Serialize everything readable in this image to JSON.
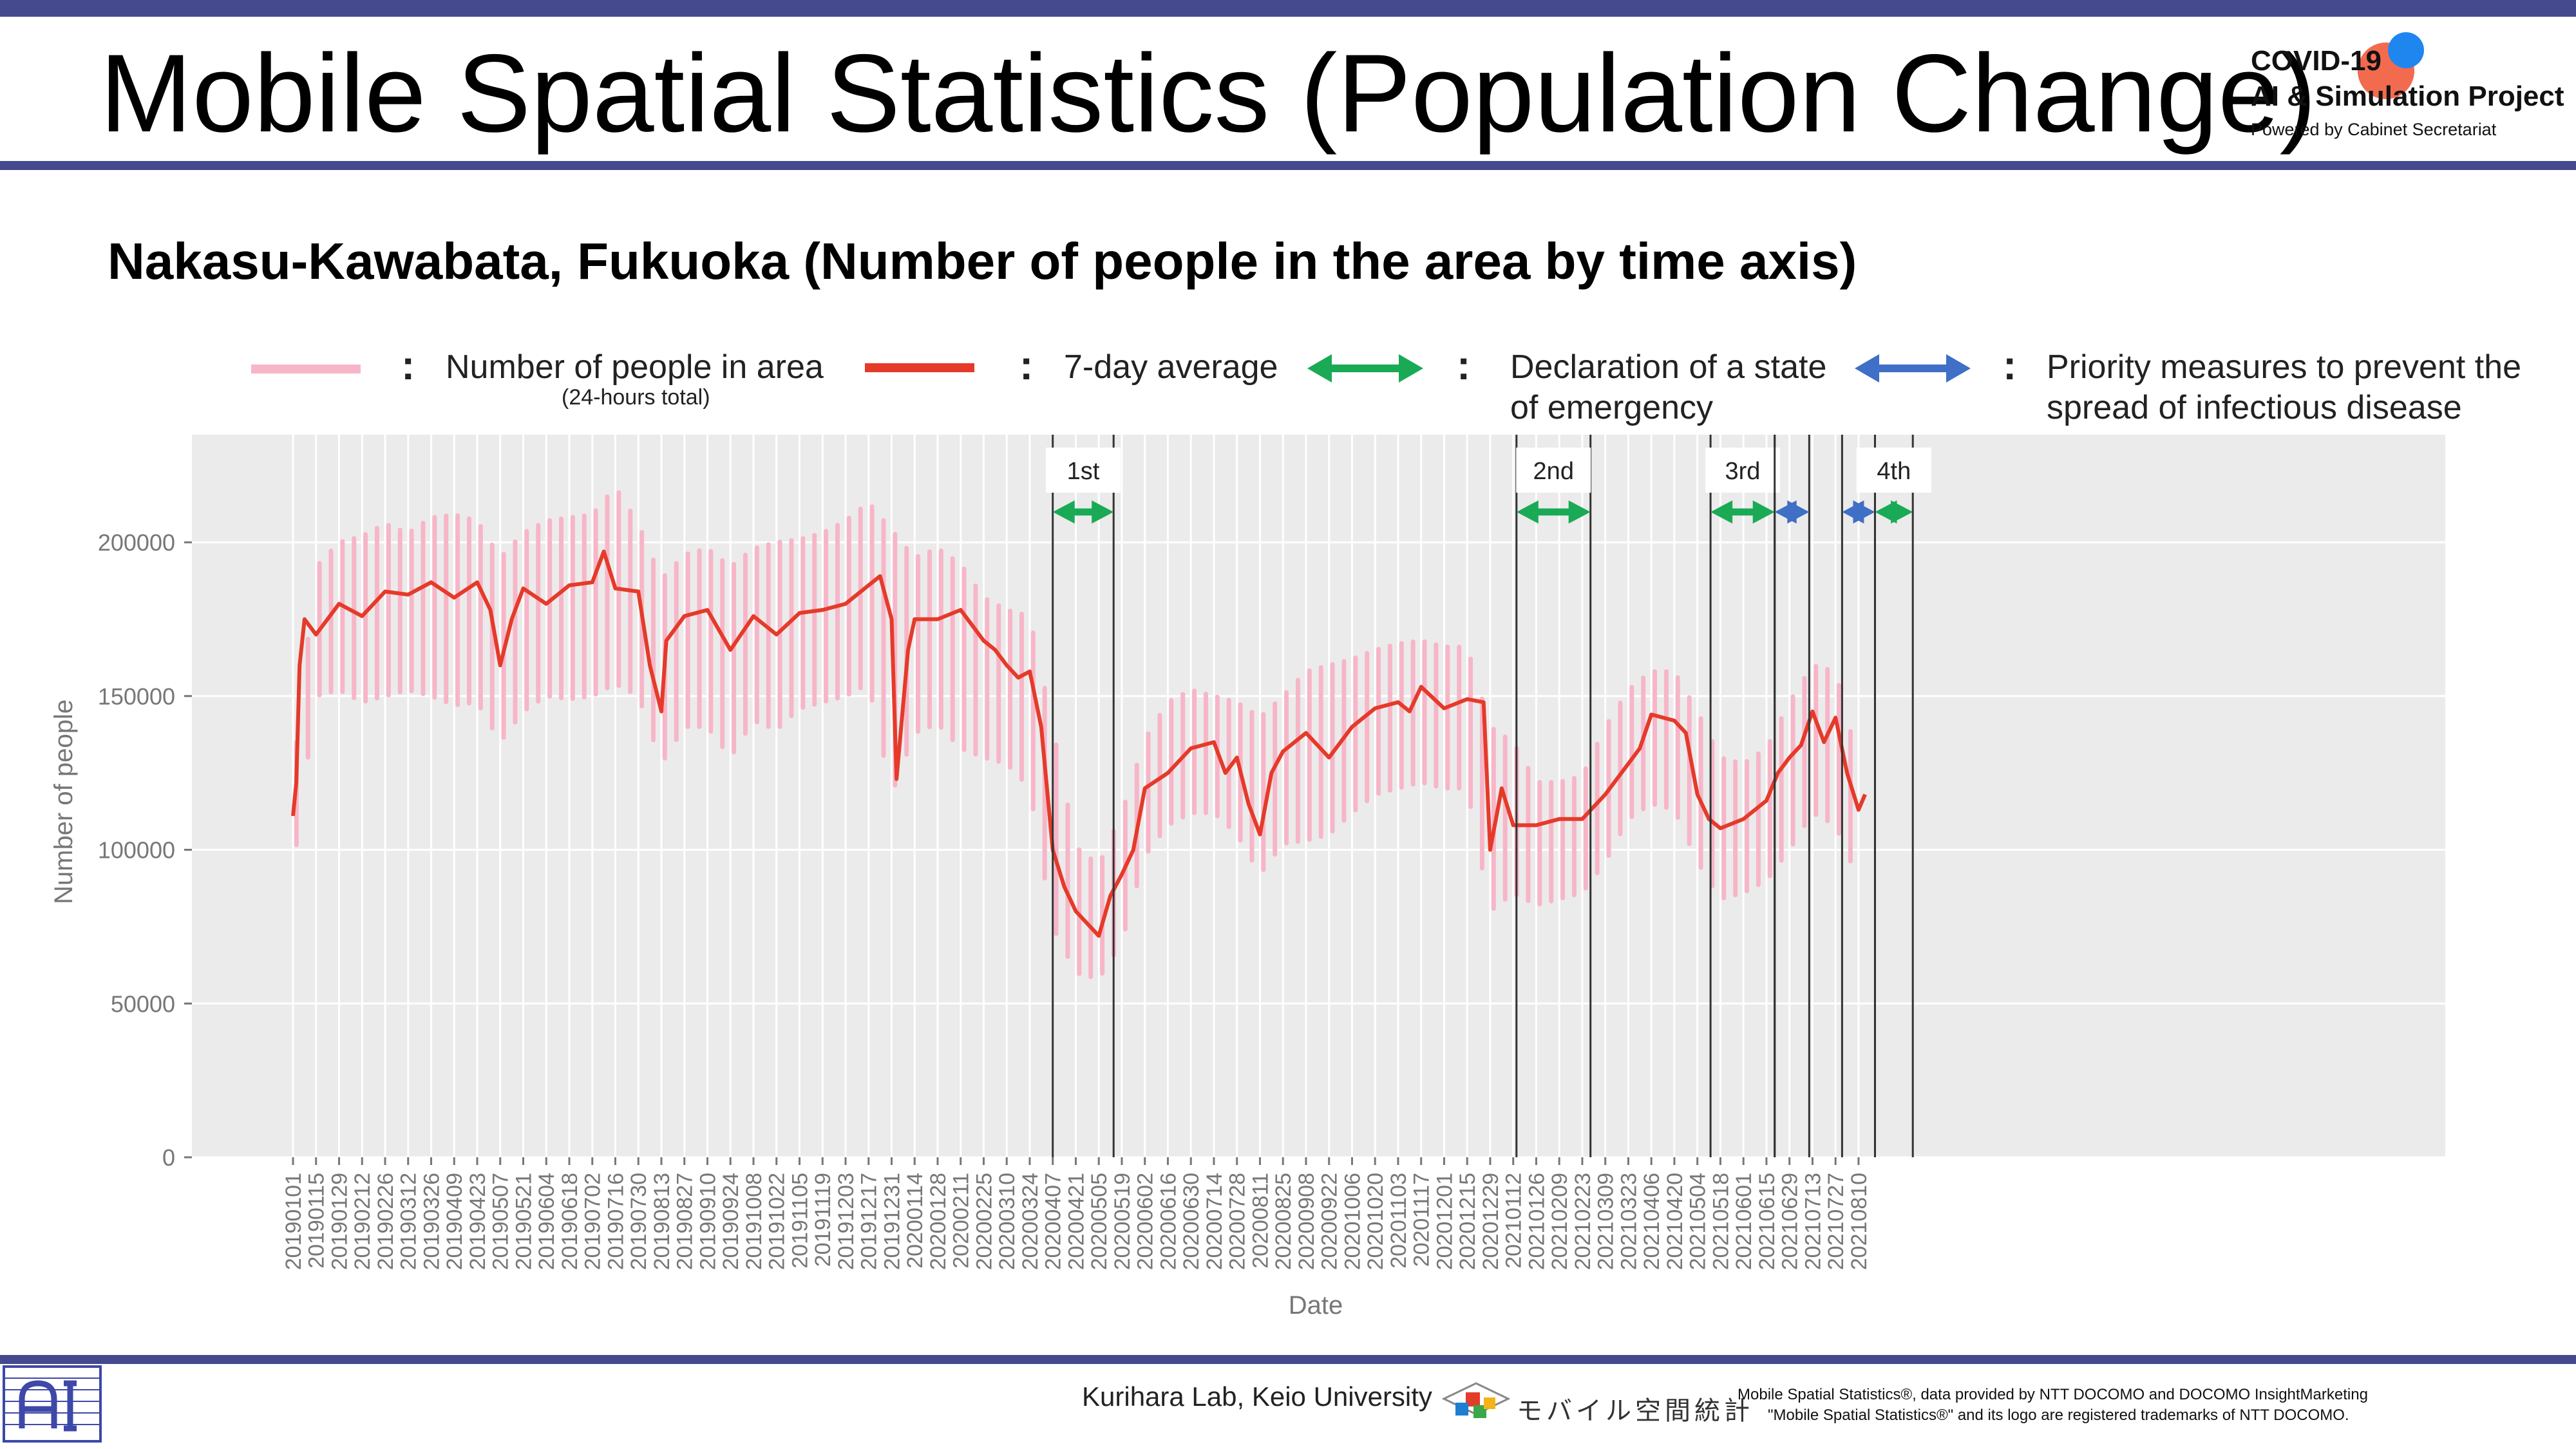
{
  "header": {
    "title": "Mobile Spatial Statistics (Population Change)",
    "logo_line1": "COVID-19",
    "logo_line2": "AI & Simulation Project",
    "logo_line3": "Powered by Cabinet Secretariat"
  },
  "subtitle": "Nakasu-Kawabata, Fukuoka (Number of people in the area by time axis)",
  "legend": {
    "colon": ":",
    "daily_label": "Number of people in area",
    "daily_sub": "(24-hours total)",
    "avg_label": "7-day average",
    "emergency_label_1": "Declaration of a state",
    "emergency_label_2": "of emergency",
    "priority_label_1": "Priority measures to prevent the",
    "priority_label_2": "spread of infectious disease"
  },
  "colors": {
    "band": "#454a8e",
    "daily": "#f7b6c8",
    "avg": "#e53a2a",
    "emergency": "#1aaa55",
    "priority": "#3f6fc6",
    "plot_bg": "#ebebeb"
  },
  "chart_data": {
    "type": "line",
    "xlabel": "Date",
    "ylabel": "Number of people",
    "ylim": [
      0,
      235000
    ],
    "yticks": [
      0,
      50000,
      100000,
      150000,
      200000
    ],
    "ytick_labels": [
      "0",
      "50000",
      "100000",
      "150000",
      "200000"
    ],
    "grid": true,
    "legend_position": "top",
    "x_tick_labels": [
      "20190101",
      "20190115",
      "20190129",
      "20190212",
      "20190226",
      "20190312",
      "20190326",
      "20190409",
      "20190423",
      "20190507",
      "20190521",
      "20190604",
      "20190618",
      "20190702",
      "20190716",
      "20190730",
      "20190813",
      "20190827",
      "20190910",
      "20190924",
      "20191008",
      "20191022",
      "20191105",
      "20191119",
      "20191203",
      "20191217",
      "20191231",
      "20200114",
      "20200128",
      "20200211",
      "20200225",
      "20200310",
      "20200324",
      "20200407",
      "20200421",
      "20200505",
      "20200519",
      "20200602",
      "20200616",
      "20200630",
      "20200714",
      "20200728",
      "20200811",
      "20200825",
      "20200908",
      "20200922",
      "20201006",
      "20201020",
      "20201103",
      "20201117",
      "20201201",
      "20201215",
      "20201229",
      "20210112",
      "20210126",
      "20210209",
      "20210223",
      "20210309",
      "20210323",
      "20210406",
      "20210420",
      "20210504",
      "20210518",
      "20210601",
      "20210615",
      "20210629",
      "20210713",
      "20210727",
      "20210810"
    ],
    "series": [
      {
        "name": "7-day average",
        "x": [
          "2019-01-01",
          "2019-01-03",
          "2019-01-05",
          "2019-01-08",
          "2019-01-15",
          "2019-01-29",
          "2019-02-12",
          "2019-02-26",
          "2019-03-12",
          "2019-03-26",
          "2019-04-09",
          "2019-04-23",
          "2019-05-01",
          "2019-05-07",
          "2019-05-14",
          "2019-05-21",
          "2019-06-04",
          "2019-06-18",
          "2019-07-02",
          "2019-07-09",
          "2019-07-16",
          "2019-07-30",
          "2019-08-06",
          "2019-08-13",
          "2019-08-16",
          "2019-08-27",
          "2019-09-10",
          "2019-09-24",
          "2019-10-08",
          "2019-10-22",
          "2019-11-05",
          "2019-11-19",
          "2019-12-03",
          "2019-12-17",
          "2019-12-24",
          "2019-12-31",
          "2020-01-03",
          "2020-01-10",
          "2020-01-14",
          "2020-01-28",
          "2020-02-11",
          "2020-02-25",
          "2020-03-03",
          "2020-03-10",
          "2020-03-17",
          "2020-03-24",
          "2020-03-31",
          "2020-04-07",
          "2020-04-14",
          "2020-04-21",
          "2020-04-28",
          "2020-05-05",
          "2020-05-12",
          "2020-05-19",
          "2020-05-26",
          "2020-06-02",
          "2020-06-16",
          "2020-06-30",
          "2020-07-14",
          "2020-07-21",
          "2020-07-28",
          "2020-08-04",
          "2020-08-11",
          "2020-08-18",
          "2020-08-25",
          "2020-09-08",
          "2020-09-22",
          "2020-10-06",
          "2020-10-20",
          "2020-11-03",
          "2020-11-10",
          "2020-11-17",
          "2020-12-01",
          "2020-12-15",
          "2020-12-25",
          "2020-12-29",
          "2021-01-05",
          "2021-01-12",
          "2021-01-26",
          "2021-02-09",
          "2021-02-23",
          "2021-03-09",
          "2021-03-23",
          "2021-03-30",
          "2021-04-06",
          "2021-04-20",
          "2021-04-27",
          "2021-05-04",
          "2021-05-11",
          "2021-05-18",
          "2021-06-01",
          "2021-06-15",
          "2021-06-22",
          "2021-06-29",
          "2021-07-06",
          "2021-07-13",
          "2021-07-20",
          "2021-07-27",
          "2021-08-03",
          "2021-08-10",
          "2021-08-14"
        ],
        "values": [
          111000,
          122000,
          160000,
          175000,
          170000,
          180000,
          176000,
          184000,
          183000,
          187000,
          182000,
          187000,
          178000,
          160000,
          175000,
          185000,
          180000,
          186000,
          187000,
          197000,
          185000,
          184000,
          160000,
          145000,
          168000,
          176000,
          178000,
          165000,
          176000,
          170000,
          177000,
          178000,
          180000,
          186000,
          189000,
          175000,
          123000,
          165000,
          175000,
          175000,
          178000,
          168000,
          165000,
          160000,
          156000,
          158000,
          140000,
          100000,
          88000,
          80000,
          76000,
          72000,
          85000,
          92000,
          100000,
          120000,
          125000,
          133000,
          135000,
          125000,
          130000,
          115000,
          105000,
          125000,
          132000,
          138000,
          130000,
          140000,
          146000,
          148000,
          145000,
          153000,
          146000,
          149000,
          148000,
          100000,
          120000,
          108000,
          108000,
          110000,
          110000,
          118000,
          128000,
          133000,
          144000,
          142000,
          138000,
          118000,
          110000,
          107000,
          110000,
          116000,
          125000,
          130000,
          134000,
          145000,
          135000,
          143000,
          125000,
          113000,
          118000
        ]
      },
      {
        "name": "Number of people in area",
        "x": [
          "2019-01-01",
          "2019-01-15",
          "2019-01-29",
          "2019-02-12",
          "2019-02-26",
          "2019-03-12",
          "2019-03-26",
          "2019-04-09",
          "2019-04-23",
          "2019-05-07",
          "2019-05-21",
          "2019-06-04",
          "2019-06-18",
          "2019-07-02",
          "2019-07-16",
          "2019-07-30",
          "2019-08-13",
          "2019-08-27",
          "2019-09-10",
          "2019-09-24",
          "2019-10-08",
          "2019-10-22",
          "2019-11-05",
          "2019-11-19",
          "2019-12-03",
          "2019-12-17",
          "2019-12-31",
          "2020-01-14",
          "2020-01-28",
          "2020-02-11",
          "2020-02-25",
          "2020-03-10",
          "2020-03-24",
          "2020-04-07",
          "2020-04-21",
          "2020-05-05",
          "2020-05-19",
          "2020-06-02",
          "2020-06-16",
          "2020-06-30",
          "2020-07-14",
          "2020-07-28",
          "2020-08-11",
          "2020-08-25",
          "2020-09-08",
          "2020-09-22",
          "2020-10-06",
          "2020-10-20",
          "2020-11-03",
          "2020-11-17",
          "2020-12-01",
          "2020-12-15",
          "2020-12-29",
          "2021-01-12",
          "2021-01-26",
          "2021-02-09",
          "2021-02-23",
          "2021-03-09",
          "2021-03-23",
          "2021-04-06",
          "2021-04-20",
          "2021-05-04",
          "2021-05-18",
          "2021-06-01",
          "2021-06-15",
          "2021-06-29",
          "2021-07-13",
          "2021-07-27",
          "2021-08-10"
        ],
        "high": [
          125000,
          192000,
          200000,
          202000,
          206000,
          203000,
          208000,
          209000,
          207000,
          195000,
          203000,
          207000,
          208000,
          209000,
          218000,
          206000,
          188000,
          196000,
          198000,
          192000,
          198000,
          200000,
          201000,
          203000,
          207000,
          213000,
          204000,
          195000,
          198000,
          193000,
          182000,
          178000,
          176000,
          140000,
          101000,
          95000,
          112000,
          136000,
          148000,
          152000,
          150000,
          148000,
          143000,
          150000,
          158000,
          160000,
          162000,
          165000,
          167000,
          168000,
          166000,
          166000,
          140000,
          135000,
          122000,
          122000,
          124000,
          140000,
          152000,
          158000,
          158000,
          145000,
          130000,
          128000,
          133000,
          148000,
          160000,
          158000,
          128000
        ],
        "low": [
          93000,
          150000,
          152000,
          148000,
          150000,
          152000,
          150000,
          147000,
          148000,
          135000,
          145000,
          150000,
          149000,
          150000,
          154000,
          150000,
          128000,
          140000,
          140000,
          130000,
          142000,
          139000,
          146000,
          148000,
          150000,
          154000,
          118000,
          138000,
          141000,
          133000,
          130000,
          128000,
          120000,
          75000,
          60000,
          58000,
          70000,
          98000,
          108000,
          112000,
          112000,
          105000,
          92000,
          102000,
          103000,
          105000,
          112000,
          118000,
          120000,
          122000,
          120000,
          120000,
          80000,
          86000,
          82000,
          84000,
          86000,
          96000,
          110000,
          115000,
          113000,
          96000,
          84000,
          86000,
          90000,
          100000,
          112000,
          108000,
          90000
        ]
      }
    ],
    "periods": [
      {
        "label": "1st",
        "type": "emergency",
        "start": "2020-04-07",
        "end": "2020-05-14"
      },
      {
        "label": "2nd",
        "type": "emergency",
        "start": "2021-01-14",
        "end": "2021-02-28"
      },
      {
        "label": "3rd",
        "type": "emergency",
        "start": "2021-05-12",
        "end": "2021-06-20"
      },
      {
        "label": "",
        "type": "priority",
        "start": "2021-06-20",
        "end": "2021-07-11"
      },
      {
        "label": "",
        "type": "priority",
        "start": "2021-07-31",
        "end": "2021-08-20"
      },
      {
        "label": "4th",
        "type": "emergency",
        "start": "2021-08-20",
        "end": "2021-09-12"
      }
    ]
  },
  "footer": {
    "lab": "Kurihara Lab, Keio University",
    "mobile_logo_text": "モバイル空間統計",
    "credit_line1": "Mobile Spatial Statistics®, data provided by NTT DOCOMO and DOCOMO InsightMarketing",
    "credit_line2": "\"Mobile Spatial Statistics®\" and its logo are registered trademarks of NTT DOCOMO."
  }
}
